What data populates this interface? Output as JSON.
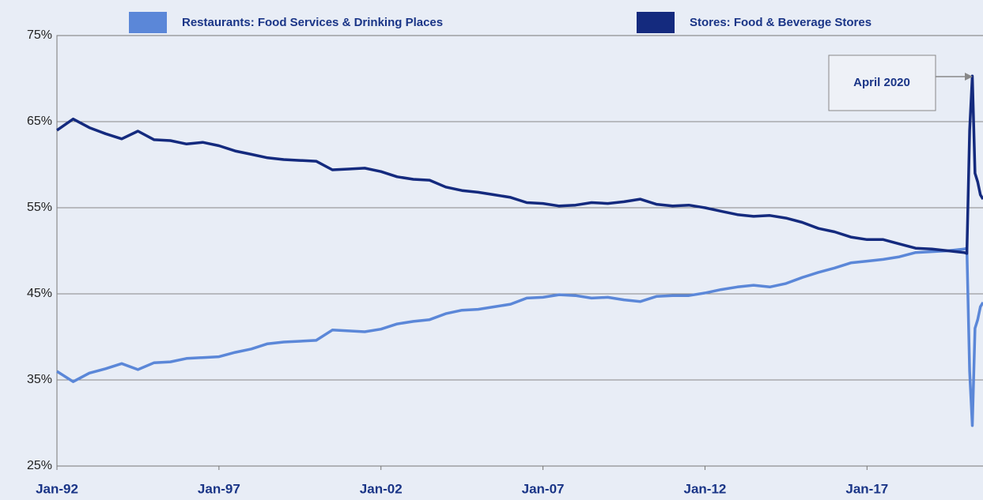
{
  "chart_data": {
    "type": "line",
    "x": [
      1992.0,
      1992.5,
      1993.0,
      1993.5,
      1994.0,
      1994.5,
      1995.0,
      1995.5,
      1996.0,
      1996.5,
      1997.0,
      1997.5,
      1998.0,
      1998.5,
      1999.0,
      1999.5,
      2000.0,
      2000.5,
      2001.0,
      2001.5,
      2002.0,
      2002.5,
      2003.0,
      2003.5,
      2004.0,
      2004.5,
      2005.0,
      2005.5,
      2006.0,
      2006.5,
      2007.0,
      2007.5,
      2008.0,
      2008.5,
      2009.0,
      2009.5,
      2010.0,
      2010.5,
      2011.0,
      2011.5,
      2012.0,
      2012.5,
      2013.0,
      2013.5,
      2014.0,
      2014.5,
      2015.0,
      2015.5,
      2016.0,
      2016.5,
      2017.0,
      2017.5,
      2018.0,
      2018.5,
      2019.0,
      2019.5,
      2020.0,
      2020.083,
      2020.167,
      2020.25,
      2020.333,
      2020.417,
      2020.5,
      2020.58
    ],
    "series": [
      {
        "name": "Restaurants: Food Services & Drinking Places",
        "color": "#5b87d8",
        "values": [
          36.0,
          34.8,
          35.8,
          36.3,
          36.9,
          36.2,
          37.0,
          37.1,
          37.5,
          37.6,
          37.7,
          38.2,
          38.6,
          39.2,
          39.4,
          39.5,
          39.6,
          40.8,
          40.7,
          40.6,
          40.9,
          41.5,
          41.8,
          42.0,
          42.7,
          43.1,
          43.2,
          43.5,
          43.8,
          44.5,
          44.6,
          44.9,
          44.8,
          44.5,
          44.6,
          44.3,
          44.1,
          44.7,
          44.8,
          44.8,
          45.1,
          45.5,
          45.8,
          46.0,
          45.8,
          46.2,
          46.9,
          47.5,
          48.0,
          48.6,
          48.8,
          49.0,
          49.3,
          49.8,
          49.9,
          50.0,
          50.2,
          50.3,
          36.0,
          29.7,
          41.0,
          42.0,
          43.5,
          44.0
        ]
      },
      {
        "name": "Stores: Food & Beverage Stores",
        "color": "#142a7e",
        "values": [
          64.0,
          65.3,
          64.3,
          63.6,
          63.0,
          63.9,
          62.9,
          62.8,
          62.4,
          62.6,
          62.2,
          61.6,
          61.2,
          60.8,
          60.6,
          60.5,
          60.4,
          59.4,
          59.5,
          59.6,
          59.2,
          58.6,
          58.3,
          58.2,
          57.4,
          57.0,
          56.8,
          56.5,
          56.2,
          55.6,
          55.5,
          55.2,
          55.3,
          55.6,
          55.5,
          55.7,
          56.0,
          55.4,
          55.2,
          55.3,
          55.0,
          54.6,
          54.2,
          54.0,
          54.1,
          53.8,
          53.3,
          52.6,
          52.2,
          51.6,
          51.3,
          51.3,
          50.8,
          50.3,
          50.2,
          50.0,
          49.8,
          49.7,
          64.0,
          70.3,
          59.0,
          58.0,
          56.5,
          56.0
        ]
      }
    ],
    "xlim": [
      1992,
      2020.58
    ],
    "xticks": [
      {
        "value": 1992,
        "label": "Jan-92"
      },
      {
        "value": 1997,
        "label": "Jan-97"
      },
      {
        "value": 2002,
        "label": "Jan-02"
      },
      {
        "value": 2007,
        "label": "Jan-07"
      },
      {
        "value": 2012,
        "label": "Jan-12"
      },
      {
        "value": 2017,
        "label": "Jan-17"
      }
    ],
    "ylim": [
      25,
      75
    ],
    "yticks": [
      {
        "value": 25,
        "label": "25%"
      },
      {
        "value": 35,
        "label": "35%"
      },
      {
        "value": 45,
        "label": "45%"
      },
      {
        "value": 55,
        "label": "55%"
      },
      {
        "value": 65,
        "label": "65%"
      },
      {
        "value": 75,
        "label": "75%"
      }
    ],
    "grid": true,
    "annotation": "April 2020"
  }
}
